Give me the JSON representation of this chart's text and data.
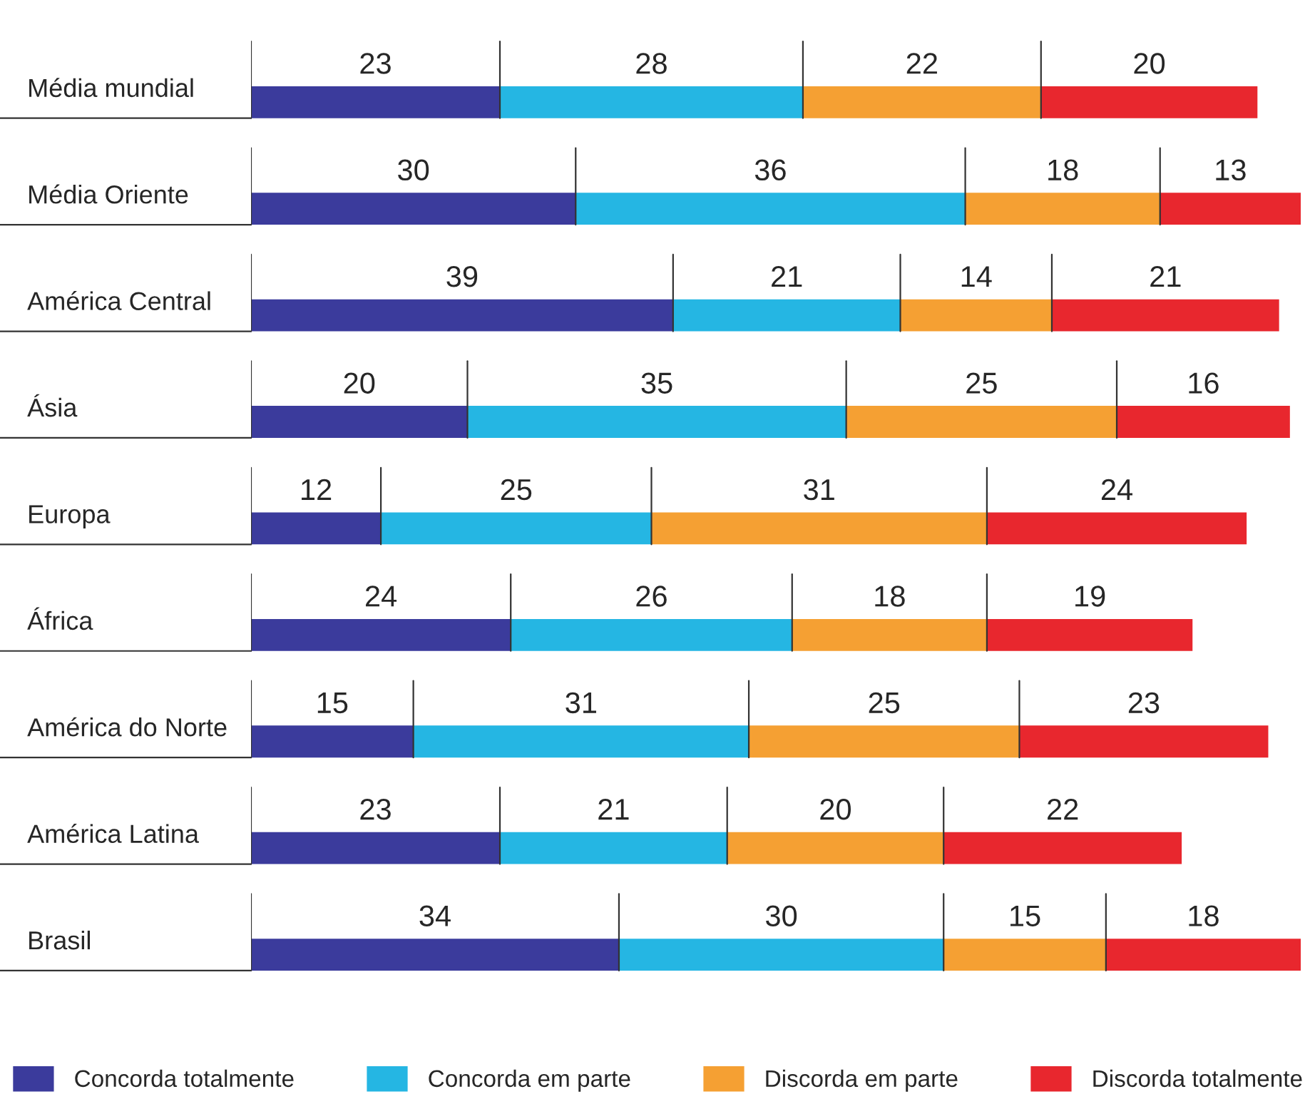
{
  "chart_data": {
    "type": "bar",
    "orientation": "horizontal",
    "stacked": true,
    "data_labels": true,
    "legend": "bottom",
    "grid": false,
    "categories": [
      "Média mundial",
      "Média Oriente",
      "América Central",
      "Ásia",
      "Europa",
      "África",
      "América do Norte",
      "América Latina",
      "Brasil"
    ],
    "series": [
      {
        "name": "Concorda totalmente",
        "color": "#3b3b9c",
        "values": [
          23,
          30,
          39,
          20,
          12,
          24,
          15,
          23,
          34
        ]
      },
      {
        "name": "Concorda em parte",
        "color": "#25b6e3",
        "values": [
          28,
          36,
          21,
          35,
          25,
          26,
          31,
          21,
          30
        ]
      },
      {
        "name": "Discorda em parte",
        "color": "#f5a033",
        "values": [
          22,
          18,
          14,
          25,
          31,
          18,
          25,
          20,
          15
        ]
      },
      {
        "name": "Discorda totalmente",
        "color": "#e8272e",
        "values": [
          20,
          13,
          21,
          16,
          24,
          19,
          23,
          22,
          18
        ]
      }
    ]
  }
}
